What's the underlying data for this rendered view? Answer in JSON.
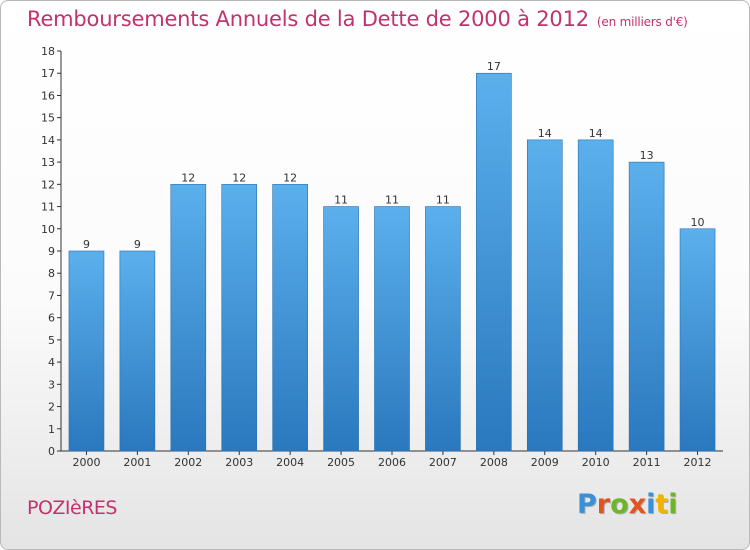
{
  "title": "Remboursements Annuels de la Dette de 2000 à 2012",
  "subtitle": "(en milliers d'€)",
  "commune": "POZIèRES",
  "logo": {
    "letters": [
      "P",
      "r",
      "o",
      "x",
      "i",
      "t",
      "i"
    ],
    "colors": [
      "#3b8fd6",
      "#e0541f",
      "#6fb52c",
      "#e0541f",
      "#3b8fd6",
      "#f0b400",
      "#6fb52c"
    ]
  },
  "chart_data": {
    "type": "bar",
    "categories": [
      "2000",
      "2001",
      "2002",
      "2003",
      "2004",
      "2005",
      "2006",
      "2007",
      "2008",
      "2009",
      "2010",
      "2011",
      "2012"
    ],
    "values": [
      9,
      9,
      12,
      12,
      12,
      11,
      11,
      11,
      17,
      14,
      14,
      13,
      10
    ],
    "ylim": [
      0,
      18
    ],
    "yticks": [
      0,
      1,
      2,
      3,
      4,
      5,
      6,
      7,
      8,
      9,
      10,
      11,
      12,
      13,
      14,
      15,
      16,
      17,
      18
    ],
    "grid": false,
    "bar_color": "#4b9de0",
    "bar_color_dark": "#2e7fc3",
    "data_labels": true
  }
}
